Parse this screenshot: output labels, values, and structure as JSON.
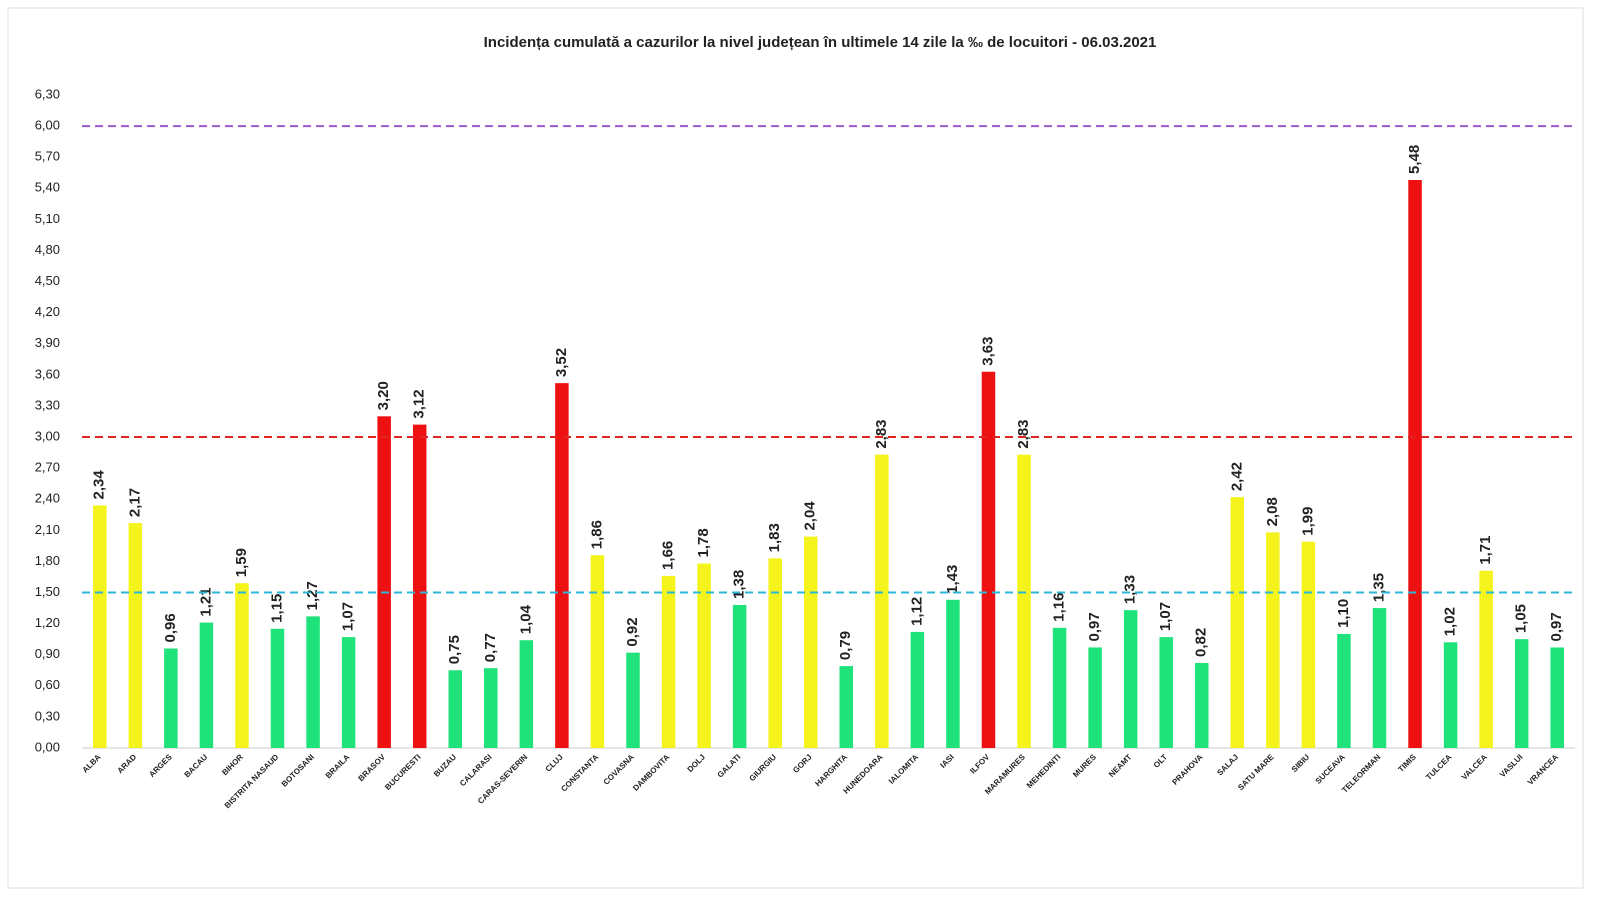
{
  "chart_data": {
    "type": "bar",
    "title": "Incidența cumulată a cazurilor la nivel județean în ultimele 14 zile la ‰ de locuitori - 06.03.2021",
    "categories": [
      "ALBA",
      "ARAD",
      "ARGES",
      "BACAU",
      "BIHOR",
      "BISTRITA NASAUD",
      "BOTOSANI",
      "BRAILA",
      "BRASOV",
      "BUCURESTI",
      "BUZAU",
      "CALARASI",
      "CARAS-SEVERIN",
      "CLUJ",
      "CONSTANTA",
      "COVASNA",
      "DAMBOVITA",
      "DOLJ",
      "GALATI",
      "GIURGIU",
      "GORJ",
      "HARGHITA",
      "HUNEDOARA",
      "IALOMITA",
      "IASI",
      "ILFOV",
      "MARAMURES",
      "MEHEDINTI",
      "MURES",
      "NEAMT",
      "OLT",
      "PRAHOVA",
      "SALAJ",
      "SATU MARE",
      "SIBIU",
      "SUCEAVA",
      "TELEORMAN",
      "TIMIS",
      "TULCEA",
      "VALCEA",
      "VASLUI",
      "VRANCEA"
    ],
    "values": [
      2.34,
      2.17,
      0.96,
      1.21,
      1.59,
      1.15,
      1.27,
      1.07,
      3.2,
      3.12,
      0.75,
      0.77,
      1.04,
      3.52,
      1.86,
      0.92,
      1.66,
      1.78,
      1.38,
      1.83,
      2.04,
      0.79,
      2.83,
      1.12,
      1.43,
      3.63,
      2.83,
      1.16,
      0.97,
      1.33,
      1.07,
      0.82,
      2.42,
      2.08,
      1.99,
      1.1,
      1.35,
      5.48,
      1.02,
      1.71,
      1.05,
      0.97
    ],
    "value_labels": [
      "2,34",
      "2,17",
      "0,96",
      "1,21",
      "1,59",
      "1,15",
      "1,27",
      "1,07",
      "3,20",
      "3,12",
      "0,75",
      "0,77",
      "1,04",
      "3,52",
      "1,86",
      "0,92",
      "1,66",
      "1,78",
      "1,38",
      "1,83",
      "2,04",
      "0,79",
      "2,83",
      "1,12",
      "1,43",
      "3,63",
      "2,83",
      "1,16",
      "0,97",
      "1,33",
      "1,07",
      "0,82",
      "2,42",
      "2,08",
      "1,99",
      "1,10",
      "1,35",
      "5,48",
      "1,02",
      "1,71",
      "1,05",
      "0,97"
    ],
    "colors": [
      "#f4f41c",
      "#f4f41c",
      "#1fe37a",
      "#1fe37a",
      "#f4f41c",
      "#1fe37a",
      "#1fe37a",
      "#1fe37a",
      "#ee1111",
      "#ee1111",
      "#1fe37a",
      "#1fe37a",
      "#1fe37a",
      "#ee1111",
      "#f4f41c",
      "#1fe37a",
      "#f4f41c",
      "#f4f41c",
      "#1fe37a",
      "#f4f41c",
      "#f4f41c",
      "#1fe37a",
      "#f4f41c",
      "#1fe37a",
      "#1fe37a",
      "#ee1111",
      "#f4f41c",
      "#1fe37a",
      "#1fe37a",
      "#1fe37a",
      "#1fe37a",
      "#1fe37a",
      "#f4f41c",
      "#f4f41c",
      "#f4f41c",
      "#1fe37a",
      "#1fe37a",
      "#ee1111",
      "#1fe37a",
      "#f4f41c",
      "#1fe37a",
      "#1fe37a"
    ],
    "ylim": [
      0,
      6.3
    ],
    "yticks": [
      {
        "value": 0,
        "label": "0,00"
      },
      {
        "value": 0.3,
        "label": "0,30"
      },
      {
        "value": 0.6,
        "label": "0,60"
      },
      {
        "value": 0.9,
        "label": "0,90"
      },
      {
        "value": 1.2,
        "label": "1,20"
      },
      {
        "value": 1.5,
        "label": "1,50"
      },
      {
        "value": 1.8,
        "label": "1,80"
      },
      {
        "value": 2.1,
        "label": "2,10"
      },
      {
        "value": 2.4,
        "label": "2,40"
      },
      {
        "value": 2.7,
        "label": "2,70"
      },
      {
        "value": 3,
        "label": "3,00"
      },
      {
        "value": 3.3,
        "label": "3,30"
      },
      {
        "value": 3.6,
        "label": "3,60"
      },
      {
        "value": 3.9,
        "label": "3,90"
      },
      {
        "value": 4.2,
        "label": "4,20"
      },
      {
        "value": 4.5,
        "label": "4,50"
      },
      {
        "value": 4.8,
        "label": "4,80"
      },
      {
        "value": 5.1,
        "label": "5,10"
      },
      {
        "value": 5.4,
        "label": "5,40"
      },
      {
        "value": 5.7,
        "label": "5,70"
      },
      {
        "value": 6,
        "label": "6,00"
      },
      {
        "value": 6.3,
        "label": "6,30"
      }
    ],
    "reference_lines": [
      {
        "value": 1.5,
        "color": "#2ab7d9"
      },
      {
        "value": 3,
        "color": "#e02424"
      },
      {
        "value": 6,
        "color": "#9b59c9"
      }
    ],
    "grid": false
  }
}
